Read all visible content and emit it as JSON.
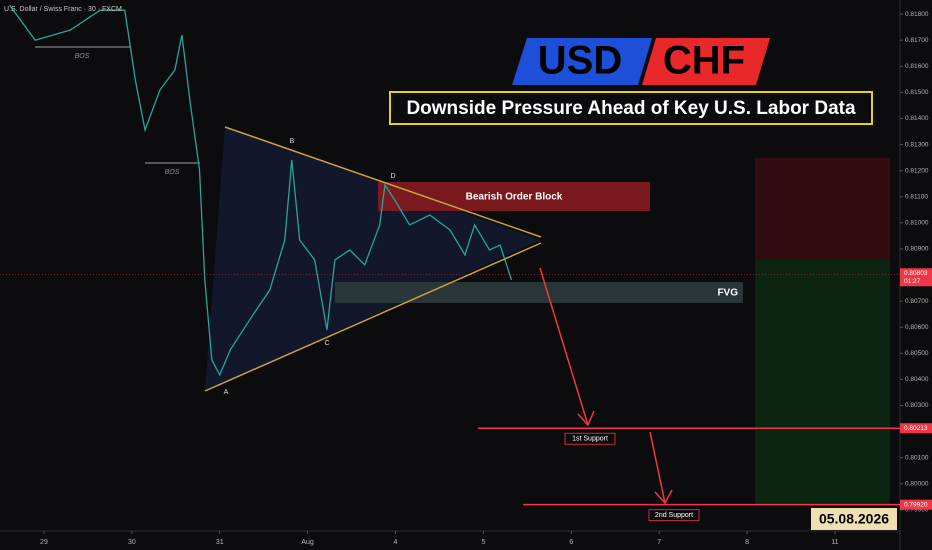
{
  "chart_data": {
    "type": "line",
    "title": "U.S. Dollar / Swiss Franc · 30 · FXCM",
    "logo_left": "USD",
    "logo_right": "CHF",
    "subtitle": "Downside Pressure Ahead of Key U.S. Labor Data",
    "date_badge": "05.08.2026",
    "xlim": [
      -0.5,
      9.74
    ],
    "xticks": [
      {
        "value": 0,
        "label": "29"
      },
      {
        "value": 1,
        "label": "30"
      },
      {
        "value": 2,
        "label": "31"
      },
      {
        "value": 3,
        "label": "Aug"
      },
      {
        "value": 4,
        "label": "4"
      },
      {
        "value": 5,
        "label": "5"
      },
      {
        "value": 6,
        "label": "6"
      },
      {
        "value": 7,
        "label": "7"
      },
      {
        "value": 8,
        "label": "8"
      },
      {
        "value": 9,
        "label": "11"
      }
    ],
    "ylim": [
      0.79823,
      0.81854
    ],
    "yticks": [
      {
        "value": 0.818,
        "label": "0.81800"
      },
      {
        "value": 0.817,
        "label": "0.81700"
      },
      {
        "value": 0.816,
        "label": "0.81600"
      },
      {
        "value": 0.815,
        "label": "0.81500"
      },
      {
        "value": 0.814,
        "label": "0.81400"
      },
      {
        "value": 0.813,
        "label": "0.81300"
      },
      {
        "value": 0.812,
        "label": "0.81200"
      },
      {
        "value": 0.811,
        "label": "0.81100"
      },
      {
        "value": 0.81,
        "label": "0.81000"
      },
      {
        "value": 0.809,
        "label": "0.80900"
      },
      {
        "value": 0.807,
        "label": "0.80700"
      },
      {
        "value": 0.806,
        "label": "0.80600"
      },
      {
        "value": 0.805,
        "label": "0.80500"
      },
      {
        "value": 0.804,
        "label": "0.80400"
      },
      {
        "value": 0.803,
        "label": "0.80300"
      },
      {
        "value": 0.801,
        "label": "0.80100"
      },
      {
        "value": 0.8,
        "label": "0.80000"
      },
      {
        "value": 0.799,
        "label": "0.79900"
      }
    ],
    "grid": false,
    "series": [
      {
        "color": "#26a69a",
        "x": [
          -0.39,
          -0.1,
          0.3,
          0.64,
          0.92,
          1.04,
          1.15,
          1.32,
          1.49,
          1.57,
          1.66,
          1.77,
          1.83,
          1.91,
          2.0,
          2.12,
          2.34,
          2.57,
          2.74,
          2.82,
          2.91,
          3.08,
          3.16,
          3.22,
          3.31,
          3.48,
          3.65,
          3.82,
          3.88,
          3.99,
          4.16,
          4.39,
          4.62,
          4.79,
          4.9,
          5.07,
          5.19,
          5.32
        ],
        "values": [
          0.81834,
          0.817,
          0.81739,
          0.81815,
          0.81815,
          0.81547,
          0.81356,
          0.81509,
          0.81586,
          0.8172,
          0.81471,
          0.81203,
          0.80781,
          0.80475,
          0.80417,
          0.80513,
          0.80628,
          0.80743,
          0.80934,
          0.81241,
          0.80934,
          0.80858,
          0.80705,
          0.8059,
          0.80858,
          0.80896,
          0.80839,
          0.80992,
          0.81145,
          0.81088,
          0.80992,
          0.8103,
          0.80973,
          0.80877,
          0.80992,
          0.80896,
          0.80915,
          0.80781
        ]
      }
    ],
    "current_price": {
      "value": 0.80803,
      "label": "0.80803"
    },
    "countdown": "01:27",
    "levels": [
      {
        "name": "1st Support",
        "value": 0.80213,
        "label": "0.80213"
      },
      {
        "name": "2nd Support",
        "value": 0.7992,
        "label": "0.79920"
      }
    ],
    "zones": [
      "Bearish Order Block",
      "FVG"
    ],
    "points": [
      "A",
      "B",
      "C",
      "D"
    ],
    "bos": [
      "BOS",
      "BOS"
    ]
  }
}
